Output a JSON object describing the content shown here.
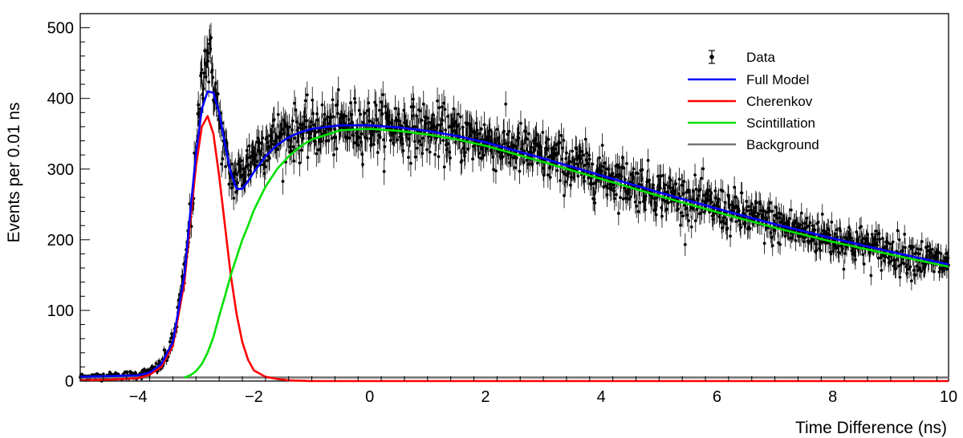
{
  "chart_data": {
    "type": "scatter",
    "xlabel": "Time Difference (ns)",
    "ylabel": "Events per 0.01 ns",
    "xlim": [
      -5,
      10
    ],
    "ylim": [
      0,
      520
    ],
    "x_ticks": [
      -4,
      -2,
      0,
      2,
      4,
      6,
      8,
      10
    ],
    "y_ticks": [
      0,
      100,
      200,
      300,
      400,
      500
    ],
    "grid": false,
    "legend_position": "top-right",
    "series": [
      {
        "name": "Data",
        "kind": "points-with-errors",
        "color": "#000000",
        "x": [
          -5.0,
          -4.5,
          -4.0,
          -3.8,
          -3.6,
          -3.4,
          -3.2,
          -3.1,
          -3.0,
          -2.95,
          -2.9,
          -2.85,
          -2.8,
          -2.75,
          -2.7,
          -2.65,
          -2.6,
          -2.5,
          -2.4,
          -2.3,
          -2.2,
          -2.1,
          -2.0,
          -1.8,
          -1.6,
          -1.4,
          -1.2,
          -1.0,
          -0.5,
          0.0,
          0.5,
          1.0,
          1.5,
          2.0,
          3.0,
          4.0,
          5.0,
          6.0,
          7.0,
          8.0,
          9.0,
          10.0
        ],
        "y": [
          6,
          7,
          9,
          13,
          22,
          55,
          150,
          230,
          310,
          380,
          430,
          455,
          460,
          450,
          430,
          400,
          370,
          320,
          290,
          285,
          295,
          310,
          320,
          335,
          345,
          350,
          352,
          355,
          360,
          362,
          360,
          355,
          348,
          340,
          318,
          293,
          268,
          245,
          222,
          202,
          183,
          165
        ]
      },
      {
        "name": "Full Model",
        "kind": "line",
        "color": "#0000ff",
        "x": [
          -5.0,
          -4.5,
          -4.0,
          -3.8,
          -3.6,
          -3.4,
          -3.2,
          -3.1,
          -3.0,
          -2.9,
          -2.8,
          -2.7,
          -2.6,
          -2.5,
          -2.4,
          -2.3,
          -2.2,
          -2.1,
          -2.0,
          -1.8,
          -1.6,
          -1.4,
          -1.2,
          -1.0,
          -0.5,
          0.0,
          0.5,
          1.0,
          1.5,
          2.0,
          3.0,
          4.0,
          5.0,
          6.0,
          7.0,
          8.0,
          9.0,
          10.0
        ],
        "y": [
          6,
          7,
          8,
          12,
          24,
          55,
          150,
          238,
          322,
          385,
          410,
          408,
          380,
          335,
          295,
          272,
          272,
          283,
          296,
          318,
          334,
          345,
          352,
          357,
          362,
          362,
          359,
          354,
          347,
          338,
          315,
          291,
          267,
          244,
          222,
          202,
          183,
          165
        ]
      },
      {
        "name": "Cherenkov",
        "kind": "line",
        "color": "#ff0000",
        "x": [
          -5.0,
          -4.5,
          -4.0,
          -3.8,
          -3.6,
          -3.4,
          -3.2,
          -3.1,
          -3.0,
          -2.9,
          -2.8,
          -2.7,
          -2.6,
          -2.5,
          -2.4,
          -2.3,
          -2.2,
          -2.1,
          -2.0,
          -1.8,
          -1.6,
          -1.4,
          -1.0,
          0.0,
          5.0,
          10.0
        ],
        "y": [
          1,
          2,
          4,
          9,
          20,
          50,
          140,
          225,
          305,
          360,
          375,
          350,
          290,
          220,
          150,
          95,
          55,
          30,
          15,
          6,
          3,
          1,
          0,
          0,
          0,
          0
        ]
      },
      {
        "name": "Scintillation",
        "kind": "line",
        "color": "#00e000",
        "x": [
          -3.2,
          -3.1,
          -3.0,
          -2.9,
          -2.8,
          -2.7,
          -2.6,
          -2.5,
          -2.4,
          -2.3,
          -2.2,
          -2.1,
          -2.0,
          -1.8,
          -1.6,
          -1.4,
          -1.2,
          -1.0,
          -0.5,
          0.0,
          0.5,
          1.0,
          1.5,
          2.0,
          3.0,
          4.0,
          5.0,
          6.0,
          7.0,
          8.0,
          9.0,
          10.0
        ],
        "y": [
          5,
          8,
          14,
          24,
          40,
          62,
          92,
          120,
          150,
          175,
          200,
          220,
          242,
          275,
          300,
          318,
          332,
          342,
          355,
          357,
          354,
          349,
          342,
          333,
          310,
          286,
          262,
          239,
          217,
          197,
          179,
          162
        ]
      },
      {
        "name": "Background",
        "kind": "line",
        "color": "#777777",
        "x": [
          -5.0,
          10.0
        ],
        "y": [
          5,
          5
        ]
      }
    ]
  }
}
